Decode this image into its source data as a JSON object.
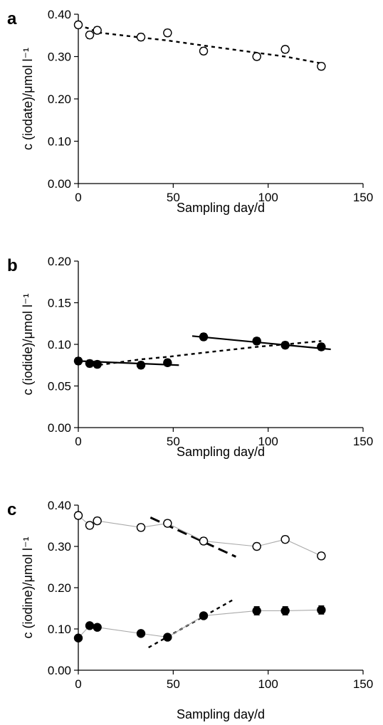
{
  "chart_data": [
    {
      "panel": "a",
      "type": "scatter",
      "xlabel": "Sampling day/d",
      "ylabel": "c (iodate)/μmol l⁻¹",
      "xlim": [
        0,
        150
      ],
      "ylim": [
        0,
        0.4
      ],
      "xticks": [
        "0",
        "50",
        "100",
        "150"
      ],
      "yticks": [
        "0.00",
        "0.10",
        "0.20",
        "0.30",
        "0.40"
      ],
      "grid": false,
      "series": [
        {
          "marker": "open-circle",
          "x": [
            0,
            6,
            10,
            33,
            47,
            66,
            94,
            109,
            128
          ],
          "y": [
            0.375,
            0.351,
            0.362,
            0.346,
            0.356,
            0.313,
            0.3,
            0.317,
            0.277
          ],
          "error": [
            0.008,
            0.008,
            0.008,
            0.008,
            0.008,
            0.008,
            0.008,
            0.008,
            0.008
          ]
        }
      ],
      "lines": [
        {
          "style": "dotted",
          "x": [
            0,
            6,
            10,
            33,
            47,
            66,
            94,
            109,
            128
          ],
          "y": [
            0.373,
            0.366,
            0.357,
            0.345,
            0.338,
            0.326,
            0.309,
            0.3,
            0.284
          ]
        }
      ]
    },
    {
      "panel": "b",
      "type": "scatter",
      "xlabel": "Sampling day/d",
      "ylabel": "c (iodide)/μmol l⁻¹",
      "xlim": [
        0,
        150
      ],
      "ylim": [
        0,
        0.2
      ],
      "xticks": [
        "0",
        "50",
        "100",
        "150"
      ],
      "yticks": [
        "0.00",
        "0.05",
        "0.10",
        "0.15",
        "0.20"
      ],
      "grid": false,
      "series": [
        {
          "marker": "filled-circle",
          "x": [
            0,
            6,
            10,
            33,
            47,
            66,
            94,
            109,
            128
          ],
          "y": [
            0.08,
            0.077,
            0.076,
            0.075,
            0.078,
            0.109,
            0.104,
            0.099,
            0.097
          ],
          "error": [
            0.004,
            0.004,
            0.004,
            0.004,
            0.004,
            0.004,
            0.004,
            0.004,
            0.004
          ]
        }
      ],
      "lines": [
        {
          "style": "solid",
          "x": [
            0,
            53
          ],
          "y": [
            0.08,
            0.075
          ]
        },
        {
          "style": "solid",
          "x": [
            60,
            133
          ],
          "y": [
            0.11,
            0.094
          ]
        },
        {
          "style": "dotted",
          "x": [
            0,
            10,
            33,
            47,
            66,
            94,
            109,
            128
          ],
          "y": [
            0.079,
            0.075,
            0.082,
            0.085,
            0.09,
            0.097,
            0.1,
            0.104
          ]
        }
      ]
    },
    {
      "panel": "c",
      "type": "line",
      "xlabel": "Sampling day/d",
      "ylabel": "c (iodine)/μmol l⁻¹",
      "xlim": [
        0,
        150
      ],
      "ylim": [
        0,
        0.4
      ],
      "xticks": [
        "0",
        "50",
        "100",
        "150"
      ],
      "yticks": [
        "0.00",
        "0.10",
        "0.20",
        "0.30",
        "0.40"
      ],
      "grid": false,
      "series": [
        {
          "marker": "open-circle",
          "x": [
            0,
            6,
            10,
            33,
            47,
            66,
            94,
            109,
            128
          ],
          "y": [
            0.375,
            0.351,
            0.362,
            0.346,
            0.356,
            0.313,
            0.3,
            0.317,
            0.277
          ],
          "error": [
            0.008,
            0.008,
            0.008,
            0.008,
            0.008,
            0.008,
            0.008,
            0.008,
            0.008
          ]
        },
        {
          "marker": "filled-circle",
          "x": [
            0,
            6,
            10,
            33,
            47,
            66,
            94,
            109,
            128
          ],
          "y": [
            0.078,
            0.108,
            0.104,
            0.089,
            0.08,
            0.132,
            0.144,
            0.144,
            0.146
          ],
          "error": [
            0.006,
            0.006,
            0.006,
            0.006,
            0.006,
            0.006,
            0.01,
            0.01,
            0.01
          ]
        }
      ],
      "lines": [
        {
          "style": "dashed",
          "x": [
            38,
            83
          ],
          "y": [
            0.37,
            0.275
          ]
        },
        {
          "style": "dotted",
          "x": [
            37,
            82
          ],
          "y": [
            0.055,
            0.172
          ]
        }
      ]
    }
  ]
}
